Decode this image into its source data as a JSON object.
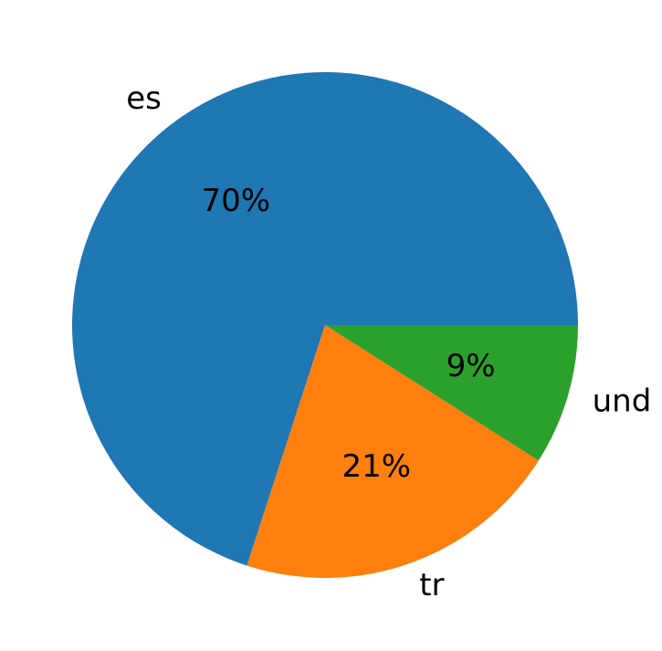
{
  "chart_data": {
    "type": "pie",
    "categories": [
      "es",
      "tr",
      "und"
    ],
    "values": [
      70,
      21,
      9
    ],
    "value_labels": [
      "70%",
      "21%",
      "9%"
    ],
    "colors": [
      "#1f77b4",
      "#ff7f0e",
      "#2ca02c"
    ],
    "start_angle": 0,
    "direction": "counterclockwise"
  }
}
